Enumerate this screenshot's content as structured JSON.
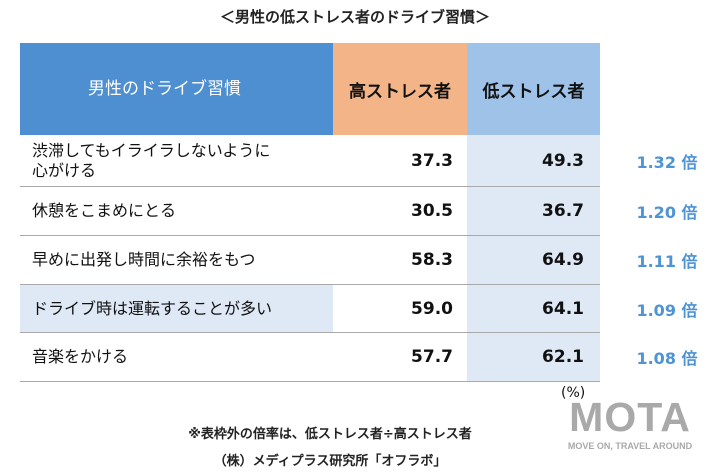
{
  "title": "＜男性の低ストレス者のドライブ習慣＞",
  "table": {
    "headers": [
      "男性のドライブ習慣",
      "高ストレス者",
      "低ストレス者"
    ],
    "rows": [
      {
        "habit_line1": "渋滞してもイライラしないように",
        "habit_line2": "心がける",
        "high": "37.3",
        "low": "49.3",
        "ratio": "1.32 倍"
      },
      {
        "habit_line1": "休憩をこまめにとる",
        "habit_line2": "",
        "high": "30.5",
        "low": "36.7",
        "ratio": "1.20 倍"
      },
      {
        "habit_line1": "早めに出発し時間に余裕をもつ",
        "habit_line2": "",
        "high": "58.3",
        "low": "64.9",
        "ratio": "1.11 倍"
      },
      {
        "habit_line1": "ドライブ時は運転することが多い",
        "habit_line2": "",
        "high": "59.0",
        "low": "64.1",
        "ratio": "1.09 倍"
      },
      {
        "habit_line1": "音楽をかける",
        "habit_line2": "",
        "high": "57.7",
        "low": "62.1",
        "ratio": "1.08 倍"
      }
    ]
  },
  "unit": "(%)",
  "notes": {
    "ratio_note": "※表枠外の倍率は、低ストレス者÷高ストレス者",
    "source": "（株）メディプラス研究所「オフラボ」"
  },
  "logo": {
    "main": "MOTA",
    "tagline": "MOVE ON, TRAVEL AROUND"
  },
  "colors": {
    "header_blue": "#4d8fd1",
    "high_orange": "#f3b588",
    "low_blue": "#9fc2e8",
    "low_cell": "#dfe9f6",
    "ratio_text": "#4d93d6"
  }
}
